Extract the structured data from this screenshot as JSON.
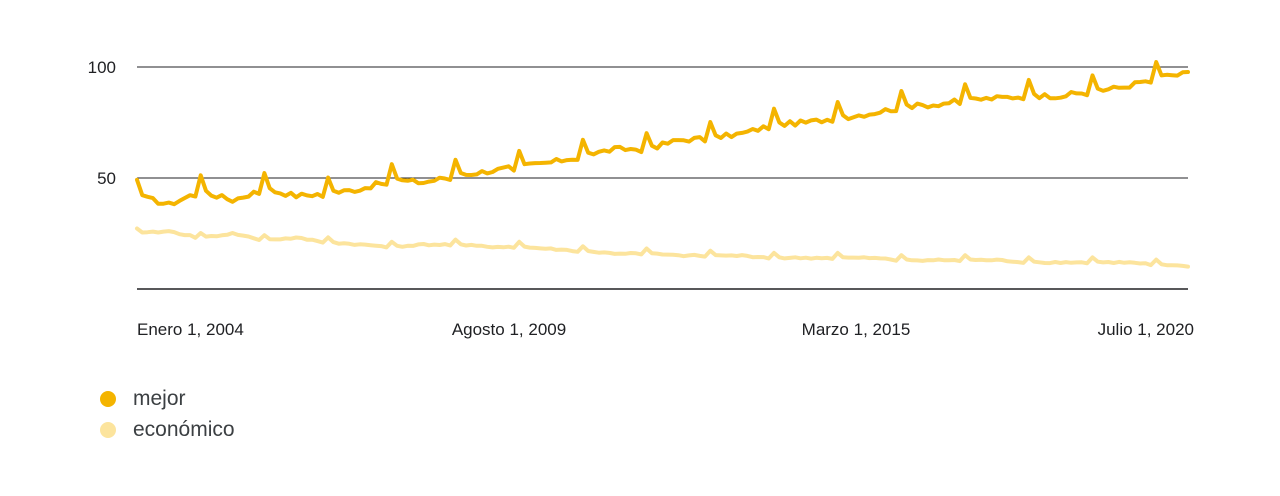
{
  "chart_data": {
    "type": "line",
    "title": "",
    "xlabel": "",
    "ylabel": "",
    "ylim": [
      0,
      100
    ],
    "y_ticks": [
      50,
      100
    ],
    "x_tick_labels": [
      "Enero 1, 2004",
      "Agosto 1, 2009",
      "Marzo 1, 2015",
      "Julio 1, 2020"
    ],
    "x_start_year": 2004,
    "x_end_year": 2020.5,
    "grid": true,
    "legend_position": "bottom-left",
    "series": [
      {
        "name": "mejor",
        "color": "#F4B400",
        "x": [
          2004.0,
          2004.5,
          2005.0,
          2005.5,
          2006.0,
          2006.5,
          2007.0,
          2007.5,
          2008.0,
          2008.5,
          2009.0,
          2009.5,
          2010.0,
          2010.5,
          2011.0,
          2011.5,
          2012.0,
          2012.5,
          2013.0,
          2013.5,
          2014.0,
          2014.5,
          2015.0,
          2015.5,
          2016.0,
          2016.5,
          2017.0,
          2017.5,
          2018.0,
          2018.5,
          2019.0,
          2019.5,
          2020.0,
          2020.5
        ],
        "values": [
          42,
          38,
          44,
          40,
          45,
          42,
          43,
          45,
          49,
          48,
          51,
          53,
          55,
          57,
          60,
          63,
          63,
          67,
          68,
          70,
          74,
          75,
          77,
          79,
          82,
          83,
          85,
          86,
          87,
          87,
          89,
          91,
          95,
          97
        ]
      },
      {
        "name": "económico",
        "color": "#FCE49D",
        "x": [
          2004.0,
          2004.5,
          2005.0,
          2005.5,
          2006.0,
          2006.5,
          2007.0,
          2007.5,
          2008.0,
          2008.5,
          2009.0,
          2009.5,
          2010.0,
          2010.5,
          2011.0,
          2011.5,
          2012.0,
          2012.5,
          2013.0,
          2013.5,
          2014.0,
          2014.5,
          2015.0,
          2015.5,
          2016.0,
          2016.5,
          2017.0,
          2017.5,
          2018.0,
          2018.5,
          2019.0,
          2019.5,
          2020.0,
          2020.5
        ],
        "values": [
          25,
          26,
          23,
          25,
          22,
          23,
          21,
          20,
          19,
          20,
          20,
          19,
          19,
          18,
          17,
          16,
          16,
          15,
          15,
          15,
          14,
          14,
          14,
          14,
          13,
          13,
          13,
          13,
          12,
          12,
          12,
          12,
          11,
          10
        ]
      }
    ]
  }
}
